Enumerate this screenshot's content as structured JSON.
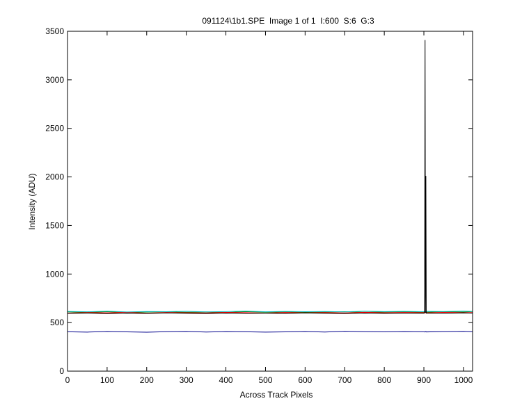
{
  "chart_data": {
    "type": "line",
    "title": "091124\\1b1.SPE  Image 1 of 1  I:600  S:6  G:3",
    "x_label": "Across Track Pixels",
    "y_label": "Intensity (ADU)",
    "x": [
      0,
      50,
      100,
      150,
      200,
      250,
      300,
      350,
      400,
      450,
      500,
      550,
      600,
      650,
      700,
      750,
      800,
      850,
      900,
      901,
      902,
      903,
      904,
      905,
      906,
      950,
      1000,
      1023
    ],
    "series": [
      {
        "color": "#00008b",
        "values": [
          405,
          402,
          408,
          404,
          401,
          406,
          409,
          403,
          407,
          405,
          402,
          404,
          408,
          403,
          411,
          406,
          404,
          407,
          405,
          404,
          406,
          403,
          405,
          408,
          404,
          407,
          410,
          406
        ]
      },
      {
        "color": "#008000",
        "values": [
          610,
          605,
          612,
          603,
          608,
          611,
          606,
          609,
          604,
          613,
          607,
          610,
          605,
          608,
          612,
          606,
          609,
          611,
          607,
          605,
          608,
          610,
          606,
          609,
          607,
          612,
          608,
          614
        ]
      },
      {
        "color": "#ff0000",
        "values": [
          598,
          603,
          600,
          606,
          597,
          604,
          601,
          599,
          605,
          602,
          598,
          604,
          600,
          603,
          599,
          606,
          601,
          604,
          602,
          600,
          603,
          599,
          601,
          604,
          600,
          605,
          602,
          603
        ]
      },
      {
        "color": "#00bfbf",
        "values": [
          615,
          611,
          617,
          609,
          614,
          612,
          616,
          610,
          613,
          618,
          611,
          615,
          612,
          614,
          610,
          617,
          613,
          616,
          612,
          614,
          611,
          615,
          613,
          612,
          616,
          614,
          618,
          615
        ]
      },
      {
        "color": "#000000",
        "values": [
          595,
          598,
          592,
          597,
          594,
          599,
          596,
          593,
          598,
          595,
          597,
          594,
          599,
          596,
          593,
          598,
          595,
          597,
          596,
          598,
          860,
          3410,
          600,
          2010,
          597,
          596,
          599,
          598
        ]
      }
    ],
    "xlim": [
      0,
      1023
    ],
    "xticks": [
      0,
      100,
      200,
      300,
      400,
      500,
      600,
      700,
      800,
      900,
      1000
    ],
    "ylim": [
      0,
      3500
    ],
    "yticks": [
      0,
      500,
      1000,
      1500,
      2000,
      2500,
      3000,
      3500
    ],
    "grid": false
  }
}
